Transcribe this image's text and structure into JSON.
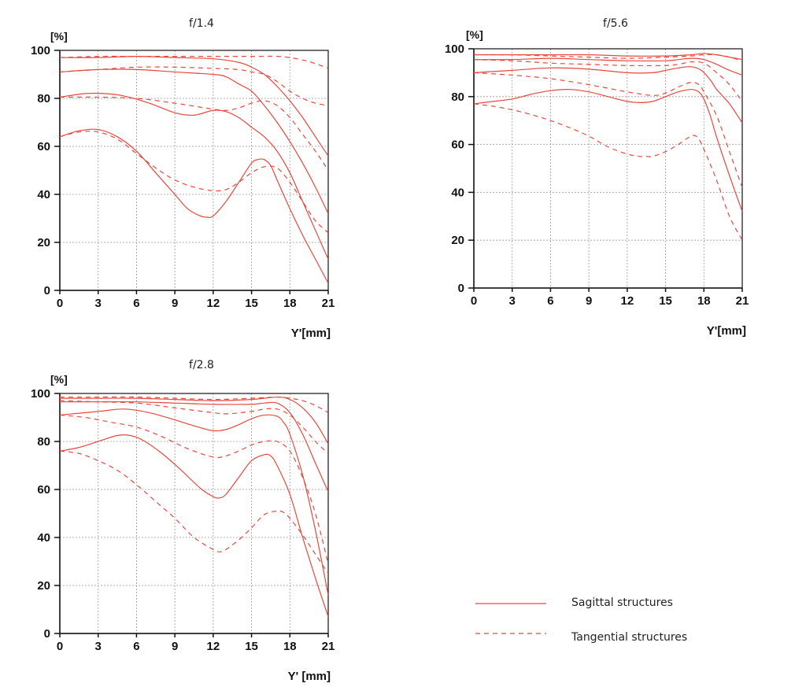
{
  "colors": {
    "curve": "#e8483d",
    "axis": "#111111",
    "grid": "#9a9a9a"
  },
  "legend": {
    "sagittal": "Sagittal structures",
    "tangential": "Tangential structures"
  },
  "chart_data": [
    {
      "type": "line",
      "title": "f/1.4",
      "ylabel": "[%]",
      "xlabel": "Y'[mm]",
      "xlim": [
        0,
        21
      ],
      "ylim": [
        0,
        100
      ],
      "xticks": [
        "0",
        "3",
        "6",
        "9",
        "12",
        "15",
        "18",
        "21"
      ],
      "yticks": [
        "0",
        "20",
        "40",
        "60",
        "80",
        "100"
      ],
      "grid": true,
      "series": [
        {
          "style": "solid",
          "x": [
            0,
            3,
            6,
            9,
            12,
            14,
            15,
            16,
            17,
            18,
            19,
            20,
            21
          ],
          "y": [
            97,
            97,
            97.5,
            97,
            96.5,
            95,
            93,
            90,
            85,
            79,
            72,
            64,
            56
          ]
        },
        {
          "style": "solid",
          "x": [
            0,
            3,
            6,
            9,
            12,
            13,
            14,
            15,
            16,
            17,
            18,
            19,
            20,
            21
          ],
          "y": [
            91,
            92,
            92,
            91,
            90,
            89,
            86,
            83,
            77,
            70,
            62,
            53,
            43,
            32
          ]
        },
        {
          "style": "solid",
          "x": [
            0,
            2,
            3.5,
            5,
            7,
            9,
            10.5,
            12,
            13,
            14,
            15,
            16,
            17,
            18,
            19,
            20,
            21
          ],
          "y": [
            80.5,
            82,
            82,
            81,
            78,
            74,
            73,
            75,
            74.5,
            72,
            68,
            64,
            58,
            49,
            37,
            25,
            13
          ]
        },
        {
          "style": "solid",
          "x": [
            0,
            1.5,
            3,
            4.5,
            6,
            7.5,
            9,
            10,
            11,
            11.5,
            12,
            13,
            14,
            15,
            15.5,
            16,
            16.5,
            17,
            18,
            19,
            20,
            21
          ],
          "y": [
            64,
            66.5,
            67,
            64,
            58,
            49,
            40,
            34,
            31,
            30.5,
            31,
            37,
            45,
            53,
            54.5,
            54.5,
            52,
            46,
            34,
            23,
            13,
            3
          ]
        },
        {
          "style": "dashed",
          "x": [
            0,
            3,
            6,
            9,
            12,
            15,
            17,
            18,
            19,
            20,
            21
          ],
          "y": [
            97,
            97.5,
            97.5,
            97.5,
            97.5,
            97.5,
            97.5,
            97,
            96,
            94.5,
            92.5
          ]
        },
        {
          "style": "dashed",
          "x": [
            0,
            3,
            6,
            9,
            12,
            14,
            15,
            16,
            17,
            18,
            19,
            20,
            21
          ],
          "y": [
            91,
            92,
            93,
            93,
            92.5,
            92,
            91,
            90,
            87,
            83,
            80,
            78,
            77
          ]
        },
        {
          "style": "dashed",
          "x": [
            0,
            3,
            6,
            9,
            12,
            13,
            14,
            15,
            16,
            17,
            18,
            19,
            20,
            21
          ],
          "y": [
            80.5,
            80.5,
            80,
            78,
            75.5,
            75,
            76,
            78,
            79,
            77,
            72,
            65,
            58,
            50
          ]
        },
        {
          "style": "dashed",
          "x": [
            0,
            1.5,
            3,
            4.5,
            6,
            7.5,
            9,
            10.5,
            12,
            13,
            14,
            15,
            16,
            17,
            18,
            19,
            20,
            21
          ],
          "y": [
            64,
            66,
            66,
            63,
            57,
            51,
            46,
            43,
            41.5,
            42,
            45,
            49,
            51.5,
            51,
            45,
            37,
            29,
            24
          ]
        }
      ]
    },
    {
      "type": "line",
      "title": "f/5.6",
      "ylabel": "[%]",
      "xlabel": "Y'[mm]",
      "xlim": [
        0,
        21
      ],
      "ylim": [
        0,
        100
      ],
      "xticks": [
        "0",
        "3",
        "6",
        "9",
        "12",
        "15",
        "18",
        "21"
      ],
      "yticks": [
        "0",
        "20",
        "40",
        "60",
        "80",
        "100"
      ],
      "grid": true,
      "series": [
        {
          "style": "solid",
          "x": [
            0,
            3,
            6,
            9,
            12,
            15,
            17,
            18,
            19,
            20,
            21
          ],
          "y": [
            97.5,
            97.5,
            97.5,
            97.5,
            97,
            97,
            97.5,
            98,
            97.5,
            96.5,
            95.5
          ]
        },
        {
          "style": "solid",
          "x": [
            0,
            3,
            6,
            9,
            12,
            15,
            16,
            17,
            18,
            19,
            20,
            21
          ],
          "y": [
            95.5,
            95.5,
            96,
            95.5,
            95,
            95,
            95.5,
            96,
            95.5,
            93.5,
            91,
            89
          ]
        },
        {
          "style": "solid",
          "x": [
            0,
            3,
            6,
            9,
            12,
            14,
            15,
            16,
            17,
            17.8,
            18.5,
            19,
            20,
            21
          ],
          "y": [
            90,
            91,
            92,
            91.5,
            90,
            90,
            91,
            92,
            92.5,
            91,
            87,
            83,
            77,
            69
          ]
        },
        {
          "style": "solid",
          "x": [
            0,
            1.5,
            3,
            4.5,
            6,
            7.5,
            9,
            10.5,
            12,
            13,
            14,
            15,
            16,
            17,
            17.6,
            18,
            18.5,
            19,
            20,
            21
          ],
          "y": [
            77,
            78,
            79,
            81,
            82.5,
            83,
            82,
            80,
            78,
            77.5,
            78,
            80,
            82,
            83,
            82,
            79,
            72,
            63,
            47,
            32
          ]
        },
        {
          "style": "dashed",
          "x": [
            0,
            3,
            6,
            9,
            12,
            15,
            17,
            18,
            19,
            20,
            21
          ],
          "y": [
            97.5,
            97.5,
            97,
            96.5,
            96,
            96.5,
            97,
            97.5,
            97.5,
            96.5,
            95
          ]
        },
        {
          "style": "dashed",
          "x": [
            0,
            3,
            6,
            9,
            12,
            15,
            16,
            17,
            18,
            19,
            20,
            21
          ],
          "y": [
            95.5,
            95,
            94,
            93.5,
            93,
            93,
            93.5,
            94.5,
            94,
            90,
            85,
            78
          ]
        },
        {
          "style": "dashed",
          "x": [
            0,
            3,
            6,
            9,
            12,
            14,
            15,
            16,
            17,
            17.6,
            18,
            19,
            20,
            21
          ],
          "y": [
            90,
            89,
            87.5,
            85,
            82,
            80.5,
            81.5,
            84,
            86,
            85,
            82,
            72,
            57,
            42
          ]
        },
        {
          "style": "dashed",
          "x": [
            0,
            1.5,
            3,
            4.5,
            6,
            7.5,
            9,
            10.5,
            12,
            13,
            13.5,
            14,
            15,
            16,
            17,
            17.5,
            18,
            19,
            20,
            21
          ],
          "y": [
            77,
            76,
            74.5,
            72.5,
            70,
            67,
            63.5,
            59,
            56,
            55,
            55,
            55,
            57,
            60,
            63.5,
            63,
            58,
            45,
            30,
            20
          ]
        }
      ]
    },
    {
      "type": "line",
      "title": "f/2.8",
      "ylabel": "[%]",
      "xlabel": "Y' [mm]",
      "xlim": [
        0,
        21
      ],
      "ylim": [
        0,
        100
      ],
      "xticks": [
        "0",
        "3",
        "6",
        "9",
        "12",
        "15",
        "18",
        "21"
      ],
      "yticks": [
        "0",
        "20",
        "40",
        "60",
        "80",
        "100"
      ],
      "grid": true,
      "series": [
        {
          "style": "solid",
          "x": [
            0,
            3,
            6,
            9,
            12,
            15,
            17,
            18,
            19,
            20,
            21
          ],
          "y": [
            98,
            98,
            98,
            97.5,
            97,
            97.5,
            98.5,
            97.5,
            94,
            88,
            79
          ]
        },
        {
          "style": "solid",
          "x": [
            0,
            3,
            6,
            9,
            12,
            15,
            16,
            17,
            18,
            19,
            20,
            21
          ],
          "y": [
            96.5,
            96.5,
            96.5,
            96,
            95.5,
            95.5,
            96,
            96,
            92,
            83,
            71,
            59
          ]
        },
        {
          "style": "solid",
          "x": [
            0,
            3,
            5,
            7,
            9,
            10.5,
            12,
            13,
            14,
            15,
            16,
            17,
            17.5,
            18,
            19,
            20,
            21
          ],
          "y": [
            91,
            92.5,
            93.5,
            92,
            89,
            86.5,
            84.5,
            85,
            87,
            89.5,
            91,
            90.5,
            88,
            83,
            66,
            43,
            16
          ]
        },
        {
          "style": "solid",
          "x": [
            0,
            1.5,
            3,
            4.5,
            5.5,
            6.5,
            8,
            9.5,
            11,
            12,
            12.5,
            13,
            14,
            15,
            16,
            16.5,
            17,
            18,
            19,
            20,
            21
          ],
          "y": [
            76,
            77.5,
            80,
            82.5,
            82.5,
            80.5,
            75,
            68,
            60.5,
            57,
            56.5,
            58,
            65,
            72,
            74.5,
            74,
            70,
            58,
            40,
            23,
            7
          ]
        },
        {
          "style": "dashed",
          "x": [
            0,
            3,
            6,
            9,
            12,
            15,
            17,
            18,
            19,
            20,
            21
          ],
          "y": [
            98.5,
            98.5,
            98.5,
            98,
            97.5,
            98,
            98.5,
            98,
            97,
            95,
            92
          ]
        },
        {
          "style": "dashed",
          "x": [
            0,
            3,
            6,
            9,
            12,
            13,
            15,
            16,
            17,
            18,
            19,
            20,
            21
          ],
          "y": [
            97,
            96.5,
            96,
            94,
            92,
            91.5,
            92.5,
            93.5,
            93.5,
            91,
            86,
            80,
            75
          ]
        },
        {
          "style": "dashed",
          "x": [
            0,
            2,
            4,
            6,
            8,
            10,
            12,
            13,
            14,
            15,
            16,
            17,
            18,
            19,
            20,
            21
          ],
          "y": [
            91,
            90,
            88,
            86,
            82,
            77,
            73.5,
            74,
            76,
            78.5,
            80,
            80,
            76,
            65,
            50,
            29
          ]
        },
        {
          "style": "dashed",
          "x": [
            0,
            1.5,
            3,
            4.5,
            6,
            7.5,
            9,
            10.5,
            12,
            12.5,
            13,
            14,
            15,
            16,
            17,
            17.5,
            18,
            19,
            20,
            21
          ],
          "y": [
            76,
            75,
            72,
            68,
            62,
            55,
            48,
            40,
            35,
            34,
            35,
            39,
            44,
            49.5,
            51,
            50.5,
            48,
            41,
            33,
            25
          ]
        }
      ]
    }
  ]
}
